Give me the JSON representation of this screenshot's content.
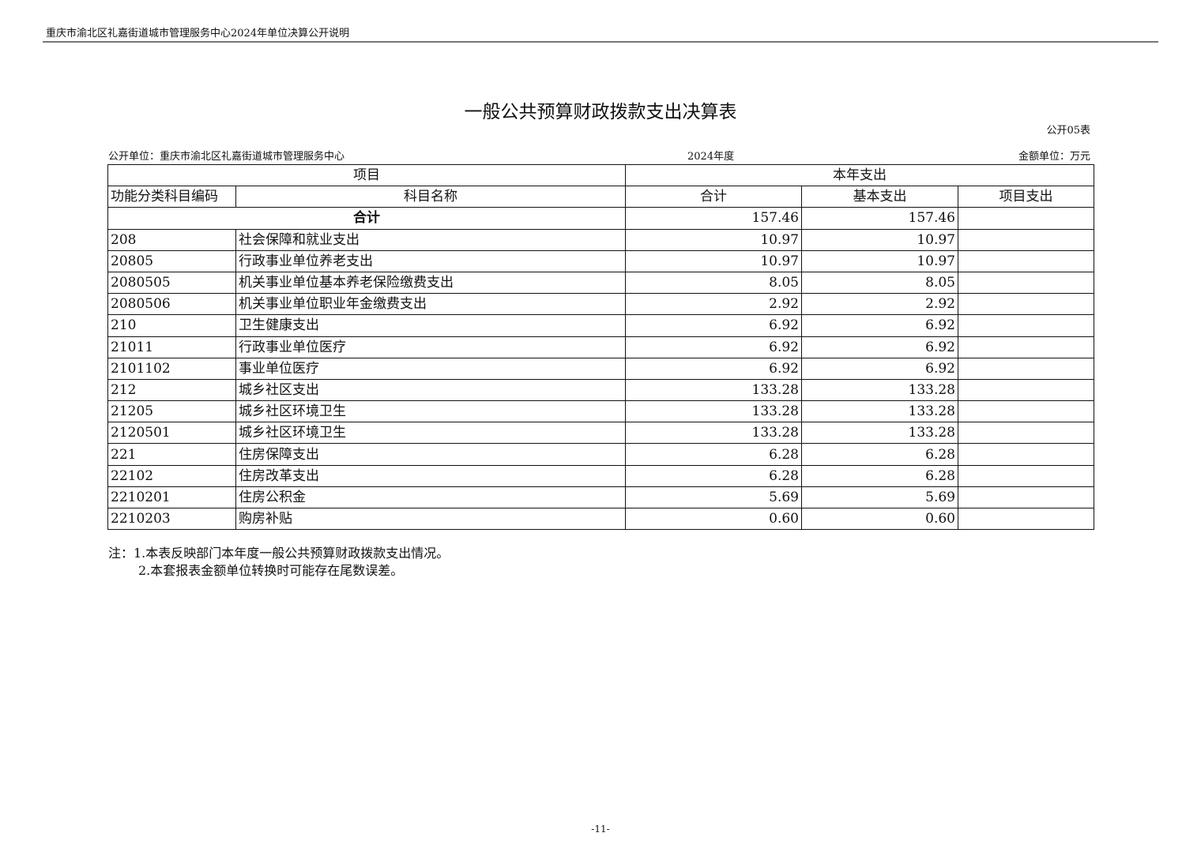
{
  "running_header": "重庆市渝北区礼嘉街道城市管理服务中心2024年单位决算公开说明",
  "title": "一般公共预算财政拨款支出决算表",
  "table_no": "公开05表",
  "unit": "公开单位：重庆市渝北区礼嘉街道城市管理服务中心",
  "year": "2024年度",
  "amount_unit": "金额单位：万元",
  "table": {
    "header_item": "项目",
    "header_current": "本年支出",
    "col_code": "功能分类科目编码",
    "col_name": "科目名称",
    "col_total": "合计",
    "col_basic": "基本支出",
    "col_project": "项目支出",
    "total_label": "合计",
    "total_value": "157.46",
    "total_basic": "157.46",
    "total_project": "",
    "rows": [
      {
        "code": "208",
        "name": "社会保障和就业支出",
        "total": "10.97",
        "basic": "10.97",
        "project": ""
      },
      {
        "code": "20805",
        "name": "行政事业单位养老支出",
        "total": "10.97",
        "basic": "10.97",
        "project": ""
      },
      {
        "code": "2080505",
        "name": "机关事业单位基本养老保险缴费支出",
        "total": "8.05",
        "basic": "8.05",
        "project": ""
      },
      {
        "code": "2080506",
        "name": "机关事业单位职业年金缴费支出",
        "total": "2.92",
        "basic": "2.92",
        "project": ""
      },
      {
        "code": "210",
        "name": "卫生健康支出",
        "total": "6.92",
        "basic": "6.92",
        "project": ""
      },
      {
        "code": "21011",
        "name": "行政事业单位医疗",
        "total": "6.92",
        "basic": "6.92",
        "project": ""
      },
      {
        "code": "2101102",
        "name": "事业单位医疗",
        "total": "6.92",
        "basic": "6.92",
        "project": ""
      },
      {
        "code": "212",
        "name": "城乡社区支出",
        "total": "133.28",
        "basic": "133.28",
        "project": ""
      },
      {
        "code": "21205",
        "name": "城乡社区环境卫生",
        "total": "133.28",
        "basic": "133.28",
        "project": ""
      },
      {
        "code": "2120501",
        "name": "城乡社区环境卫生",
        "total": "133.28",
        "basic": "133.28",
        "project": ""
      },
      {
        "code": "221",
        "name": "住房保障支出",
        "total": "6.28",
        "basic": "6.28",
        "project": ""
      },
      {
        "code": "22102",
        "name": "住房改革支出",
        "total": "6.28",
        "basic": "6.28",
        "project": ""
      },
      {
        "code": "2210201",
        "name": "住房公积金",
        "total": "5.69",
        "basic": "5.69",
        "project": ""
      },
      {
        "code": "2210203",
        "name": "购房补贴",
        "total": "0.60",
        "basic": "0.60",
        "project": ""
      }
    ]
  },
  "notes": [
    "注：1.本表反映部门本年度一般公共预算财政拨款支出情况。",
    "2.本套报表金额单位转换时可能存在尾数误差。"
  ],
  "page_number": "-11-"
}
